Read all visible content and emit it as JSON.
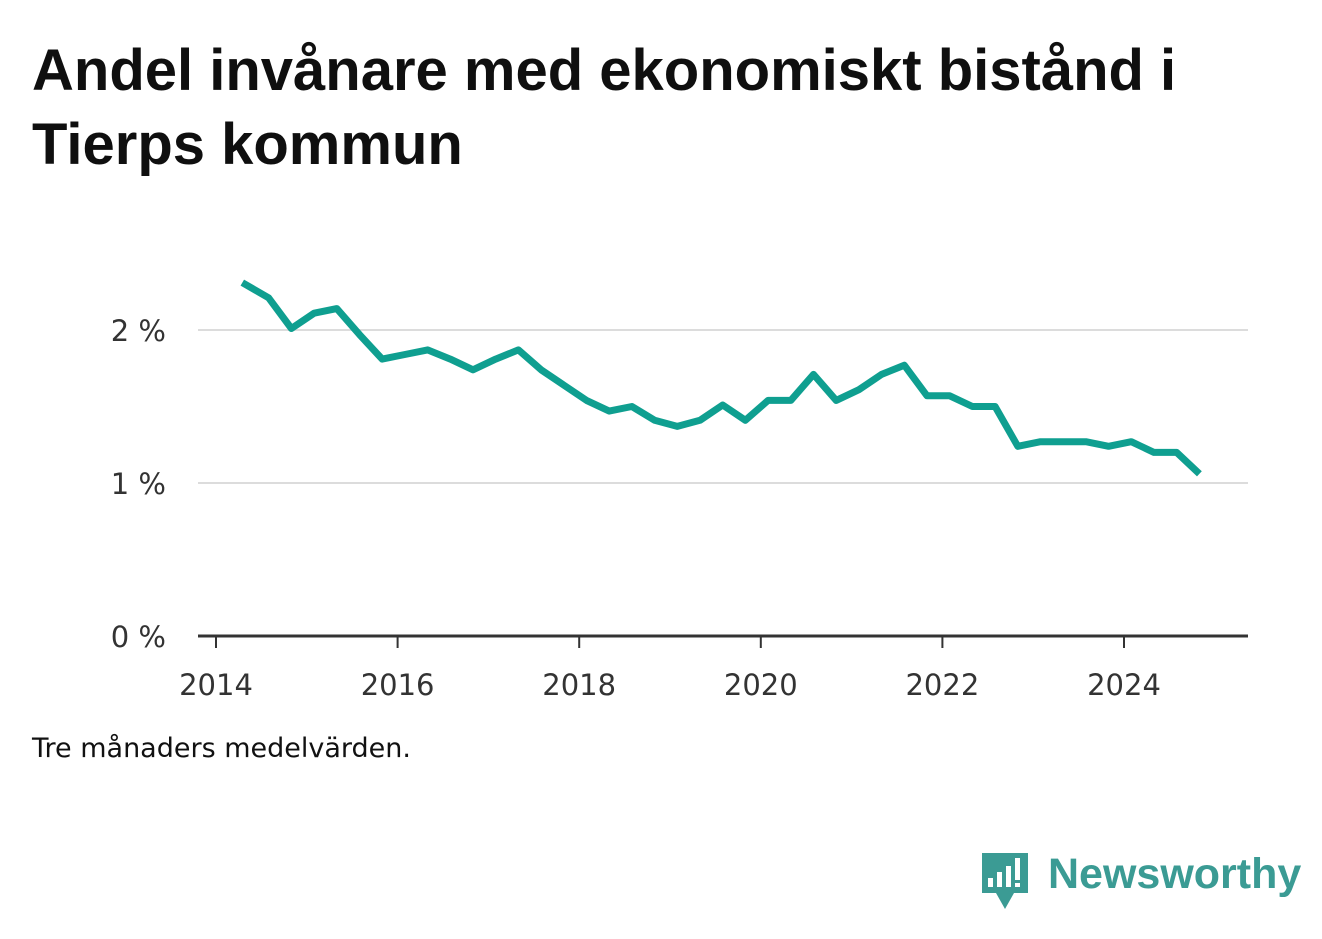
{
  "title": "Andel invånare med ekonomiskt bistånd i Tierps kommun",
  "note": "Tre månaders medelvärden.",
  "brand": {
    "name": "Newsworthy",
    "logo_icon": "newsworthy-bar-chart-bubble-icon"
  },
  "colors": {
    "line": "#0f9f90",
    "grid": "#dcdcdc",
    "axis": "#333333",
    "brand": "#3b9b94"
  },
  "chart_data": {
    "type": "line",
    "title": "Andel invånare med ekonomiskt bistånd i Tierps kommun",
    "xlabel": "",
    "ylabel": "",
    "xlim": [
      2014,
      2025.35
    ],
    "ylim": [
      0,
      2.5
    ],
    "x_ticks": [
      2014,
      2016,
      2018,
      2020,
      2022,
      2024
    ],
    "x_tick_labels": [
      "2014",
      "2016",
      "2018",
      "2020",
      "2022",
      "2024"
    ],
    "y_ticks": [
      0,
      1,
      2
    ],
    "y_tick_labels": [
      "0 %",
      "1 %",
      "2 %"
    ],
    "grid": true,
    "series": [
      {
        "name": "Andel invånare med ekonomiskt bistånd",
        "unit": "%",
        "x": [
          2014.29,
          2014.58,
          2014.83,
          2015.08,
          2015.33,
          2015.58,
          2015.83,
          2016.08,
          2016.33,
          2016.58,
          2016.83,
          2017.08,
          2017.33,
          2017.58,
          2017.83,
          2018.08,
          2018.33,
          2018.58,
          2018.83,
          2019.08,
          2019.33,
          2019.58,
          2019.83,
          2020.08,
          2020.33,
          2020.58,
          2020.83,
          2021.08,
          2021.33,
          2021.58,
          2021.83,
          2022.08,
          2022.33,
          2022.58,
          2022.83,
          2023.08,
          2023.33,
          2023.58,
          2023.83,
          2024.08,
          2024.33,
          2024.58,
          2024.83
        ],
        "values": [
          2.31,
          2.21,
          2.01,
          2.11,
          2.14,
          1.97,
          1.81,
          1.84,
          1.87,
          1.81,
          1.74,
          1.81,
          1.87,
          1.74,
          1.64,
          1.54,
          1.47,
          1.5,
          1.41,
          1.37,
          1.41,
          1.51,
          1.41,
          1.54,
          1.54,
          1.71,
          1.54,
          1.61,
          1.71,
          1.77,
          1.57,
          1.57,
          1.5,
          1.5,
          1.24,
          1.27,
          1.27,
          1.27,
          1.24,
          1.27,
          1.2,
          1.2,
          1.06
        ]
      }
    ]
  }
}
